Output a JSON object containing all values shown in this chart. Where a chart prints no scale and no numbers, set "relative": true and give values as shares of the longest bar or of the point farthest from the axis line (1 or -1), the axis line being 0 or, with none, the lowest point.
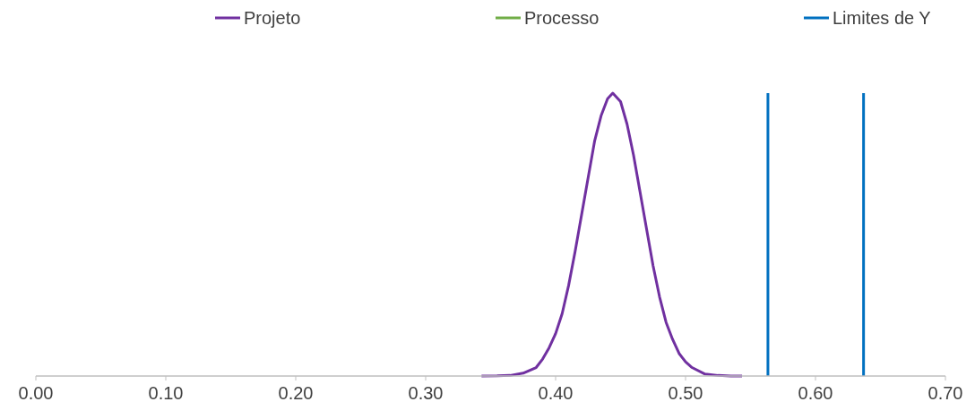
{
  "chart_data": {
    "type": "line",
    "relative": true,
    "xlim": [
      0,
      0.7
    ],
    "xticks": [
      {
        "value": 0,
        "label": "0.00"
      },
      {
        "value": 0.1,
        "label": "0.10"
      },
      {
        "value": 0.2,
        "label": "0.20"
      },
      {
        "value": 0.3,
        "label": "0.30"
      },
      {
        "value": 0.4,
        "label": "0.40"
      },
      {
        "value": 0.5,
        "label": "0.50"
      },
      {
        "value": 0.6,
        "label": "0.60"
      },
      {
        "value": 0.7,
        "label": "0.70"
      }
    ],
    "grid": false,
    "legend": "top",
    "marker": "none",
    "line_style": "solid",
    "series": [
      {
        "name": "Projeto",
        "color": "#7030a0",
        "x": [
          0.343,
          0.355,
          0.365,
          0.375,
          0.385,
          0.39,
          0.395,
          0.4,
          0.405,
          0.41,
          0.415,
          0.42,
          0.425,
          0.43,
          0.435,
          0.44,
          0.444,
          0.45,
          0.455,
          0.46,
          0.465,
          0.47,
          0.475,
          0.48,
          0.485,
          0.49,
          0.495,
          0.5,
          0.505,
          0.515,
          0.525,
          0.535,
          0.5435
        ],
        "values": [
          0,
          0.0004,
          0.002,
          0.01,
          0.03,
          0.06,
          0.1,
          0.15,
          0.22,
          0.32,
          0.44,
          0.57,
          0.7,
          0.83,
          0.92,
          0.98,
          1,
          0.97,
          0.89,
          0.78,
          0.65,
          0.52,
          0.39,
          0.28,
          0.19,
          0.13,
          0.08,
          0.05,
          0.03,
          0.007,
          0.002,
          0.0003,
          0
        ]
      },
      {
        "name": "Processo",
        "color": "#70ad47"
      },
      {
        "name": "Limites de Y",
        "color": "#0070c0",
        "x": [
          0.5634,
          0.5634,
          null,
          0.637,
          0.637
        ],
        "values": [
          0,
          1,
          null,
          0,
          1
        ]
      }
    ]
  }
}
